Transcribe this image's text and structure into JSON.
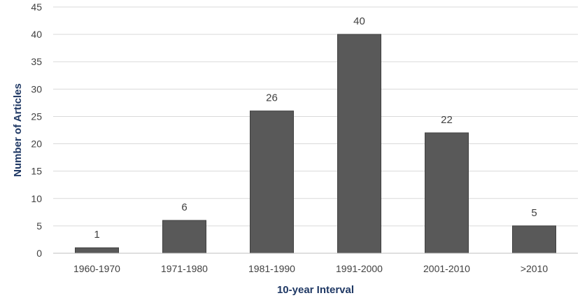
{
  "chart_data": {
    "type": "bar",
    "title": "",
    "xlabel": "10-year Interval",
    "ylabel": "Number of Articles",
    "categories": [
      "1960-1970",
      "1971-1980",
      "1981-1990",
      "1991-2000",
      "2001-2010",
      ">2010"
    ],
    "values": [
      1,
      6,
      26,
      40,
      22,
      5
    ],
    "ylim": [
      0,
      45
    ],
    "yticks": [
      0,
      5,
      10,
      15,
      20,
      25,
      30,
      35,
      40,
      45
    ],
    "grid": true,
    "legend": "none",
    "data_labels": true,
    "bar_color": "#595959",
    "bar_edge_color": "#404040"
  }
}
